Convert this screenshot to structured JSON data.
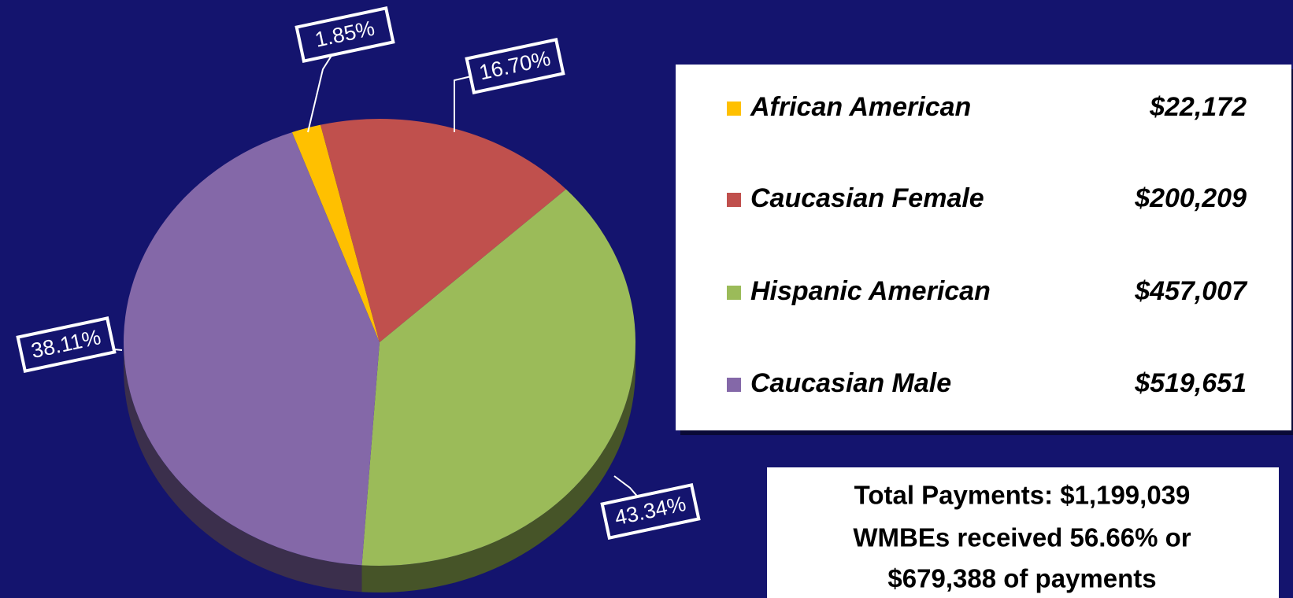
{
  "chart_data": {
    "type": "pie",
    "categories": [
      "African American",
      "Caucasian Female",
      "Hispanic American",
      "Caucasian Male"
    ],
    "values": [
      1.85,
      16.7,
      38.11,
      43.34
    ],
    "value_labels": [
      "1.85%",
      "16.70%",
      "38.11%",
      "43.34%"
    ],
    "colors": [
      "#ffc000",
      "#c0504d",
      "#9bbb59",
      "#8468a8"
    ],
    "amounts": [
      22172,
      200209,
      457007,
      519651
    ],
    "amount_labels": [
      "$22,172",
      "$200,209",
      "$457,007",
      "$519,651"
    ],
    "notes": [
      "Total Payments: $1,199,039",
      "WMBEs received 56.66% or",
      "$679,388 of payments"
    ]
  }
}
